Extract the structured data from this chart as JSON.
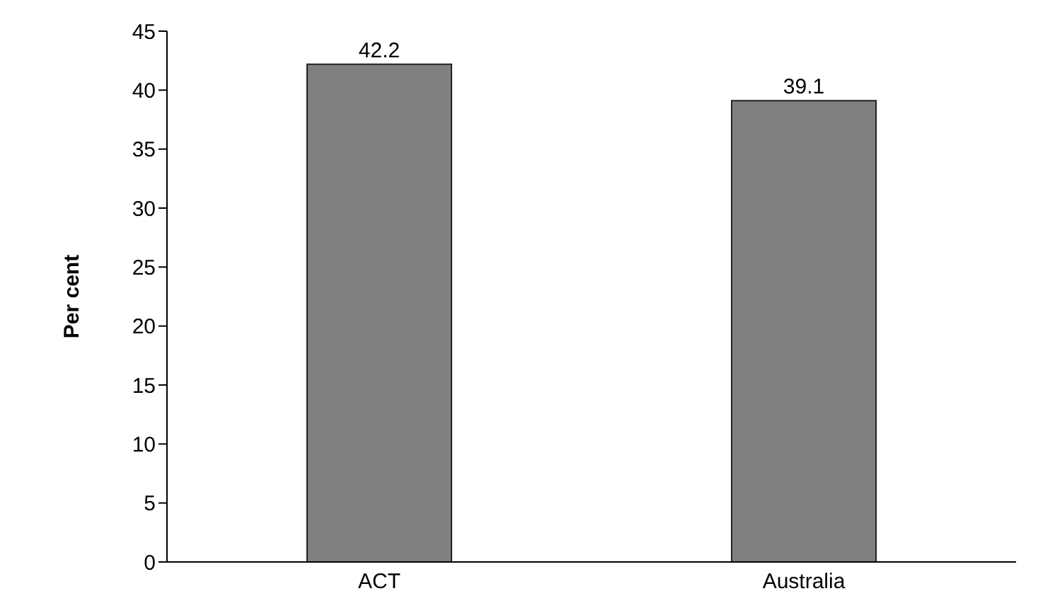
{
  "chart_data": {
    "type": "bar",
    "ylabel": "Per cent",
    "categories": [
      "ACT",
      "Australia"
    ],
    "values": [
      42.2,
      39.1
    ],
    "color": "#808080",
    "ylim": [
      0,
      45
    ],
    "yticks": [
      0,
      5,
      10,
      15,
      20,
      25,
      30,
      35,
      40,
      45
    ],
    "data_labels": true,
    "grid": false,
    "legend": false
  }
}
